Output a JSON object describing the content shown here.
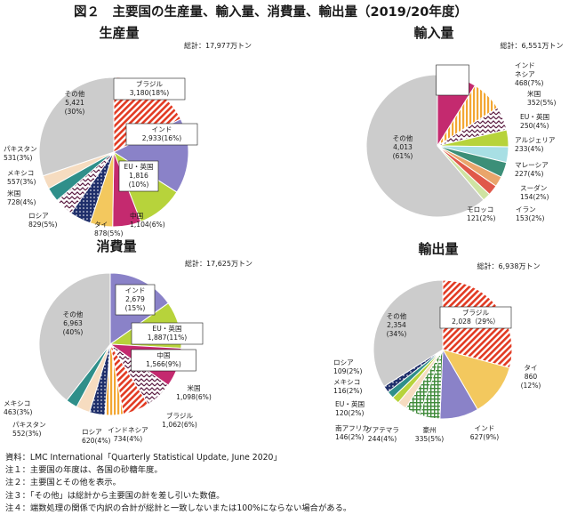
{
  "figure_title": "図２　主要国の生産量、輸入量、消費量、輸出量（2019/20年度）",
  "colors": {
    "brazil": "#e23a22",
    "india": "#8a82c8",
    "eu_uk": "#b7d33b",
    "china": "#c42a6f",
    "thai": "#f3c85e",
    "other": "#cccccc"
  },
  "notes": [
    "資料：LMC International「Quarterly Statistical Update, June 2020」",
    "注１：主要国の年度は、各国の砂糖年度。",
    "注２：主要国とその他を表示。",
    "注３：「その他」は総計から主要国の計を差し引いた数値。",
    "注４：端数処理の関係で内訳の合計が総計と一致しないまたは100%にならない場合がある。"
  ],
  "chart_data": [
    {
      "type": "pie",
      "title": "生産量",
      "total_label": "総計：17,977万トン",
      "slices": [
        {
          "name": "ブラジル",
          "value": 3180,
          "pct": "18%",
          "label": [
            "ブラジル",
            "3,180(18%)"
          ],
          "color": "#e23a22",
          "pattern": "hatch-red"
        },
        {
          "name": "インド",
          "value": 2933,
          "pct": "16%",
          "label": [
            "インド",
            "2,933(16%)"
          ],
          "color": "#8a82c8",
          "pattern": "solid"
        },
        {
          "name": "EU・英国",
          "value": 1816,
          "pct": "10%",
          "label": [
            "EU・英国",
            "1,816",
            "(10%)"
          ],
          "color": "#b7d33b",
          "pattern": "solid"
        },
        {
          "name": "中国",
          "value": 1104,
          "pct": "6%",
          "label": [
            "中国",
            "1,104(6%)"
          ],
          "color": "#c42a6f",
          "pattern": "solid"
        },
        {
          "name": "タイ",
          "value": 878,
          "pct": "5%",
          "label": [
            "タイ",
            "878(5%)"
          ],
          "color": "#f3c85e",
          "pattern": "solid"
        },
        {
          "name": "ロシア",
          "value": 829,
          "pct": "5%",
          "label": [
            "ロシア",
            "829(5%)"
          ],
          "color": "#1f2f6b",
          "pattern": "dots-navy"
        },
        {
          "name": "米国",
          "value": 728,
          "pct": "4%",
          "label": [
            "米国",
            "728(4%)"
          ],
          "color": "#5a1a40",
          "pattern": "zigzag"
        },
        {
          "name": "メキシコ",
          "value": 557,
          "pct": "3%",
          "label": [
            "メキシコ",
            "557(3%)"
          ],
          "color": "#2f8f8a",
          "pattern": "solid"
        },
        {
          "name": "パキスタン",
          "value": 531,
          "pct": "3%",
          "label": [
            "パキスタン",
            "531(3%)"
          ],
          "color": "#f6dcc0",
          "pattern": "solid"
        },
        {
          "name": "その他",
          "value": 5421,
          "pct": "30%",
          "label": [
            "その他",
            "5,421",
            "(30%)"
          ],
          "color": "#cccccc",
          "pattern": "solid"
        }
      ]
    },
    {
      "type": "pie",
      "title": "輸入量",
      "total_label": "総計：6,551万トン",
      "slices": [
        {
          "name": "中国",
          "value": 582,
          "pct": "9%",
          "label": [
            "中国",
            "582",
            "(9%)"
          ],
          "color": "#c42a6f",
          "pattern": "solid"
        },
        {
          "name": "インドネシア",
          "value": 468,
          "pct": "7%",
          "label": [
            "インド",
            "ネシア",
            "468(7%)"
          ],
          "color": "#f3c85e",
          "pattern": "vstripe"
        },
        {
          "name": "米国",
          "value": 352,
          "pct": "5%",
          "label": [
            "米国",
            "352(5%)"
          ],
          "color": "#c9b8e2",
          "pattern": "zigzag"
        },
        {
          "name": "EU・英国",
          "value": 250,
          "pct": "4%",
          "label": [
            "EU・英国",
            "250(4%)"
          ],
          "color": "#b7d33b",
          "pattern": "solid"
        },
        {
          "name": "アルジェリア",
          "value": 233,
          "pct": "4%",
          "label": [
            "アルジェリア",
            "233(4%)"
          ],
          "color": "#a8dfe4",
          "pattern": "solid"
        },
        {
          "name": "マレーシア",
          "value": 227,
          "pct": "4%",
          "label": [
            "マレーシア",
            "227(4%)"
          ],
          "color": "#3c8f78",
          "pattern": "solid"
        },
        {
          "name": "スーダン",
          "value": 154,
          "pct": "2%",
          "label": [
            "スーダン",
            "154(2%)"
          ],
          "color": "#e9a56b",
          "pattern": "solid"
        },
        {
          "name": "イラン",
          "value": 153,
          "pct": "2%",
          "label": [
            "イラン",
            "153(2%)"
          ],
          "color": "#e0584a",
          "pattern": "solid"
        },
        {
          "name": "モロッコ",
          "value": 121,
          "pct": "2%",
          "label": [
            "モロッコ",
            "121(2%)"
          ],
          "color": "#cfe3a2",
          "pattern": "solid"
        },
        {
          "name": "その他",
          "value": 4013,
          "pct": "61%",
          "label": [
            "その他",
            "4,013",
            "(61%)"
          ],
          "color": "#cccccc",
          "pattern": "solid"
        }
      ]
    },
    {
      "type": "pie",
      "title": "消費量",
      "total_label": "総計：17,625万トン",
      "slices": [
        {
          "name": "インド",
          "value": 2679,
          "pct": "15%",
          "label": [
            "インド",
            "2,679",
            "(15%)"
          ],
          "color": "#8a82c8",
          "pattern": "solid"
        },
        {
          "name": "EU・英国",
          "value": 1887,
          "pct": "11%",
          "label": [
            "EU・英国",
            "1,887(11%)"
          ],
          "color": "#b7d33b",
          "pattern": "solid"
        },
        {
          "name": "中国",
          "value": 1566,
          "pct": "9%",
          "label": [
            "中国",
            "1,566(9%)"
          ],
          "color": "#c42a6f",
          "pattern": "solid"
        },
        {
          "name": "米国",
          "value": 1098,
          "pct": "6%",
          "label": [
            "米国",
            "1,098(6%)"
          ],
          "color": "#c9b8e2",
          "pattern": "zigzag"
        },
        {
          "name": "ブラジル",
          "value": 1062,
          "pct": "6%",
          "label": [
            "ブラジル",
            "1,062(6%)"
          ],
          "color": "#e23a22",
          "pattern": "hatch-red"
        },
        {
          "name": "インドネシア",
          "value": 734,
          "pct": "4%",
          "label": [
            "インドネシア",
            "734(4%)"
          ],
          "color": "#f3c85e",
          "pattern": "vstripe"
        },
        {
          "name": "ロシア",
          "value": 620,
          "pct": "4%",
          "label": [
            "ロシア",
            "620(4%)"
          ],
          "color": "#1f2f6b",
          "pattern": "dots-navy"
        },
        {
          "name": "パキスタン",
          "value": 552,
          "pct": "3%",
          "label": [
            "パキスタン",
            "552(3%)"
          ],
          "color": "#f6dcc0",
          "pattern": "solid"
        },
        {
          "name": "メキシコ",
          "value": 463,
          "pct": "3%",
          "label": [
            "メキシコ",
            "463(3%)"
          ],
          "color": "#2f8f8a",
          "pattern": "solid"
        },
        {
          "name": "その他",
          "value": 6963,
          "pct": "40%",
          "label": [
            "その他",
            "6,963",
            "(40%)"
          ],
          "color": "#cccccc",
          "pattern": "solid"
        }
      ]
    },
    {
      "type": "pie",
      "title": "輸出量",
      "total_label": "総計：6,938万トン",
      "slices": [
        {
          "name": "ブラジル",
          "value": 2028,
          "pct": "29%",
          "label": [
            "ブラジル",
            "2,028（29%）"
          ],
          "color": "#e23a22",
          "pattern": "hatch-red"
        },
        {
          "name": "タイ",
          "value": 860,
          "pct": "12%",
          "label": [
            "タイ",
            "860",
            "(12%)"
          ],
          "color": "#f3c85e",
          "pattern": "solid"
        },
        {
          "name": "インド",
          "value": 627,
          "pct": "9%",
          "label": [
            "インド",
            "627(9%)"
          ],
          "color": "#8a82c8",
          "pattern": "solid"
        },
        {
          "name": "豪州",
          "value": 335,
          "pct": "5%",
          "label": [
            "豪州",
            "335(5%)"
          ],
          "color": "#4a8f3c",
          "pattern": "grid"
        },
        {
          "name": "グアテマラ",
          "value": 244,
          "pct": "4%",
          "label": [
            "グアテマラ",
            "244(4%)"
          ],
          "color": "#6a9bd0",
          "pattern": "grid"
        },
        {
          "name": "南アフリカ",
          "value": 146,
          "pct": "2%",
          "label": [
            "南アフリカ",
            "146(2%)"
          ],
          "color": "#f6dcc0",
          "pattern": "solid"
        },
        {
          "name": "EU・英国",
          "value": 120,
          "pct": "2%",
          "label": [
            "EU・英国",
            "120(2%)"
          ],
          "color": "#b7d33b",
          "pattern": "solid"
        },
        {
          "name": "メキシコ",
          "value": 116,
          "pct": "2%",
          "label": [
            "メキシコ",
            "116(2%)"
          ],
          "color": "#2f8f8a",
          "pattern": "solid"
        },
        {
          "name": "ロシア",
          "value": 109,
          "pct": "2%",
          "label": [
            "ロシア",
            "109(2%)"
          ],
          "color": "#1f2f6b",
          "pattern": "dots-navy"
        },
        {
          "name": "その他",
          "value": 2354,
          "pct": "34%",
          "label": [
            "その他",
            "2,354",
            "(34%)"
          ],
          "color": "#cccccc",
          "pattern": "solid"
        }
      ]
    }
  ]
}
